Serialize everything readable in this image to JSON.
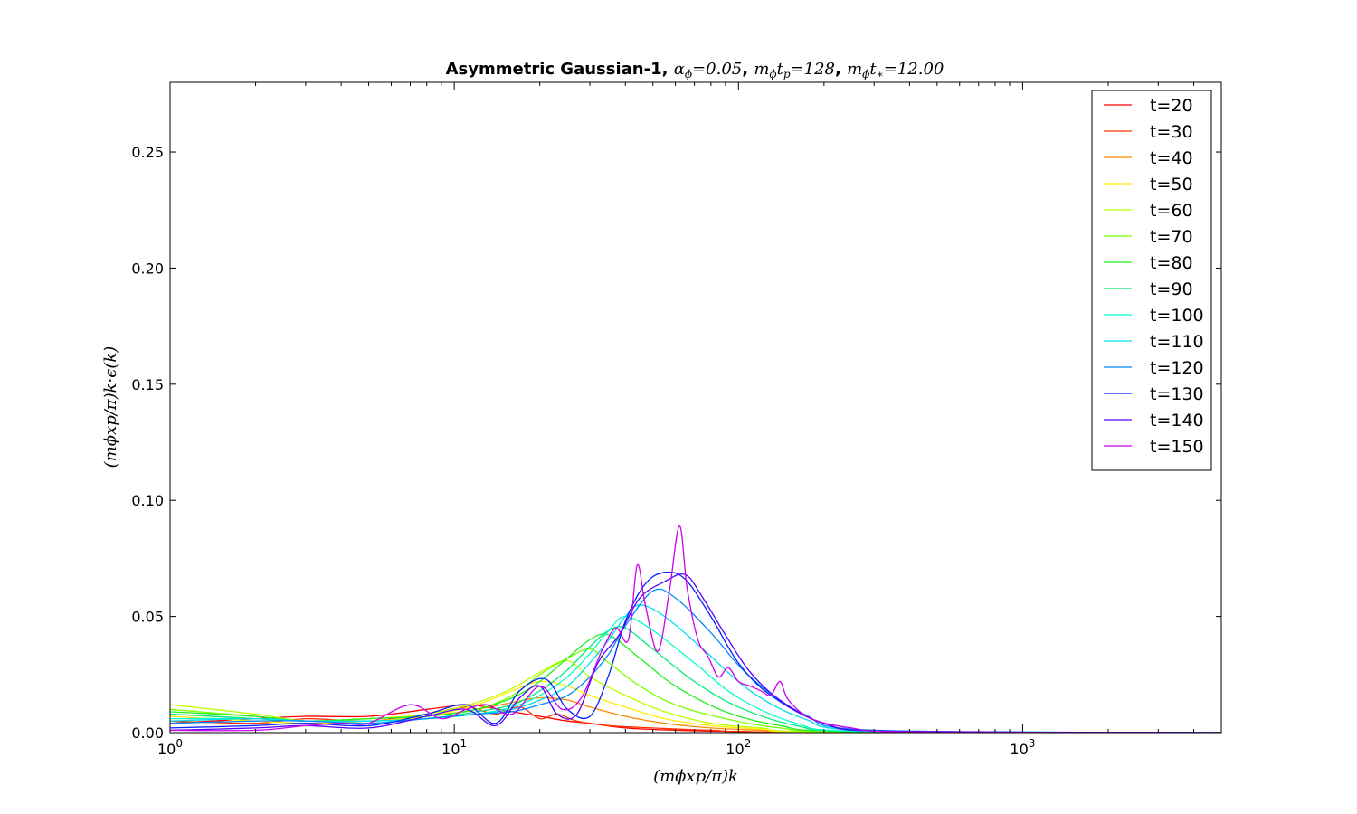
{
  "chart_data": {
    "type": "line",
    "title": {
      "prefix": "Asymmetric Gaussian-1, ",
      "alpha": "α",
      "alpha_sub": "ϕ",
      "alpha_val": "=0.05",
      "sep1": ", ",
      "m1": "m",
      "m1_sub": "ϕ",
      "tp": "t",
      "tp_sub": "p",
      "tp_val": "=128",
      "sep2": ", ",
      "m2": "m",
      "m2_sub": "ϕ",
      "ts": "t",
      "ts_sub": "∗",
      "ts_val": "=12.00"
    },
    "xlabel": "(mϕxp/π)k",
    "ylabel": "(mϕxp/π)k·ϵ(k)",
    "x_scale": "log",
    "xlim": [
      1,
      5000
    ],
    "ylim": [
      0,
      0.28
    ],
    "x_ticks": [
      {
        "value": 1,
        "base": "10",
        "exp": "0"
      },
      {
        "value": 10,
        "base": "10",
        "exp": "1"
      },
      {
        "value": 100,
        "base": "10",
        "exp": "2"
      },
      {
        "value": 1000,
        "base": "10",
        "exp": "3"
      }
    ],
    "y_ticks": [
      {
        "value": 0.0,
        "label": "0.00"
      },
      {
        "value": 0.05,
        "label": "0.05"
      },
      {
        "value": 0.1,
        "label": "0.10"
      },
      {
        "value": 0.15,
        "label": "0.15"
      },
      {
        "value": 0.2,
        "label": "0.20"
      },
      {
        "value": 0.25,
        "label": "0.25"
      }
    ],
    "grid": false,
    "legend": "top-right",
    "series": [
      {
        "name": "t=20",
        "color": "#ff0000",
        "x": [
          1,
          2,
          3,
          5,
          8,
          11,
          13,
          16,
          20,
          25,
          30,
          40,
          60,
          100,
          200,
          5000
        ],
        "y": [
          0.004,
          0.006,
          0.007,
          0.007,
          0.01,
          0.012,
          0.011,
          0.009,
          0.007,
          0.005,
          0.004,
          0.002,
          0.001,
          0.0005,
          0.0001,
          0
        ]
      },
      {
        "name": "t=30",
        "color": "#ff3300",
        "x": [
          1,
          2,
          3,
          5,
          8,
          11,
          14,
          17,
          20,
          23,
          27,
          35,
          50,
          80,
          150,
          5000
        ],
        "y": [
          0.005,
          0.004,
          0.006,
          0.005,
          0.008,
          0.011,
          0.008,
          0.011,
          0.006,
          0.008,
          0.005,
          0.003,
          0.002,
          0.001,
          0.0002,
          0
        ]
      },
      {
        "name": "t=40",
        "color": "#ff8800",
        "x": [
          1,
          2,
          3,
          5,
          8,
          12,
          16,
          20,
          25,
          30,
          40,
          55,
          80,
          120,
          200,
          5000
        ],
        "y": [
          0.008,
          0.006,
          0.005,
          0.006,
          0.007,
          0.01,
          0.013,
          0.015,
          0.014,
          0.011,
          0.007,
          0.004,
          0.002,
          0.001,
          0.0002,
          0
        ]
      },
      {
        "name": "t=50",
        "color": "#ffee00",
        "x": [
          1,
          2,
          3,
          5,
          8,
          12,
          16,
          20,
          25,
          30,
          40,
          55,
          80,
          120,
          200,
          5000
        ],
        "y": [
          0.007,
          0.005,
          0.004,
          0.005,
          0.007,
          0.012,
          0.018,
          0.022,
          0.02,
          0.016,
          0.011,
          0.006,
          0.003,
          0.0015,
          0.0003,
          0
        ]
      },
      {
        "name": "t=60",
        "color": "#bbff00",
        "x": [
          1,
          2,
          3,
          5,
          8,
          12,
          16,
          20,
          25,
          30,
          40,
          55,
          80,
          120,
          200,
          5000
        ],
        "y": [
          0.012,
          0.008,
          0.005,
          0.006,
          0.008,
          0.013,
          0.019,
          0.026,
          0.031,
          0.024,
          0.016,
          0.009,
          0.004,
          0.002,
          0.0004,
          0
        ]
      },
      {
        "name": "t=70",
        "color": "#77ff00",
        "x": [
          1,
          2,
          3,
          5,
          8,
          12,
          16,
          20,
          25,
          30,
          35,
          45,
          60,
          90,
          140,
          250,
          5000
        ],
        "y": [
          0.01,
          0.007,
          0.005,
          0.006,
          0.007,
          0.01,
          0.016,
          0.025,
          0.032,
          0.036,
          0.03,
          0.02,
          0.012,
          0.006,
          0.002,
          0.0004,
          0
        ]
      },
      {
        "name": "t=80",
        "color": "#22ee22",
        "x": [
          1,
          2,
          3,
          5,
          8,
          12,
          16,
          20,
          25,
          30,
          35,
          45,
          60,
          90,
          140,
          250,
          5000
        ],
        "y": [
          0.009,
          0.007,
          0.005,
          0.006,
          0.007,
          0.01,
          0.015,
          0.022,
          0.032,
          0.04,
          0.042,
          0.032,
          0.02,
          0.009,
          0.003,
          0.0005,
          0
        ]
      },
      {
        "name": "t=90",
        "color": "#00ee77",
        "x": [
          1,
          2,
          3,
          5,
          8,
          12,
          16,
          20,
          25,
          30,
          35,
          40,
          50,
          70,
          100,
          160,
          280,
          5000
        ],
        "y": [
          0.008,
          0.006,
          0.005,
          0.005,
          0.006,
          0.009,
          0.012,
          0.018,
          0.027,
          0.037,
          0.044,
          0.045,
          0.036,
          0.022,
          0.011,
          0.003,
          0.0005,
          0
        ]
      },
      {
        "name": "t=100",
        "color": "#00ffcc",
        "x": [
          1,
          2,
          3,
          5,
          8,
          12,
          16,
          20,
          25,
          30,
          35,
          40,
          50,
          70,
          100,
          160,
          280,
          5000
        ],
        "y": [
          0.006,
          0.006,
          0.005,
          0.005,
          0.006,
          0.008,
          0.011,
          0.016,
          0.024,
          0.034,
          0.044,
          0.05,
          0.044,
          0.03,
          0.015,
          0.004,
          0.0006,
          0
        ]
      },
      {
        "name": "t=110",
        "color": "#00ddee",
        "x": [
          1,
          2,
          3,
          5,
          8,
          12,
          16,
          20,
          25,
          30,
          35,
          40,
          45,
          55,
          75,
          110,
          170,
          300,
          5000
        ],
        "y": [
          0.005,
          0.006,
          0.005,
          0.005,
          0.006,
          0.008,
          0.01,
          0.014,
          0.02,
          0.03,
          0.04,
          0.05,
          0.055,
          0.05,
          0.036,
          0.018,
          0.006,
          0.0008,
          0
        ]
      },
      {
        "name": "t=120",
        "color": "#0088ff",
        "x": [
          1,
          2,
          3,
          5,
          8,
          12,
          16,
          20,
          25,
          30,
          35,
          40,
          50,
          60,
          80,
          110,
          170,
          300,
          5000
        ],
        "y": [
          0.004,
          0.005,
          0.005,
          0.004,
          0.006,
          0.008,
          0.009,
          0.012,
          0.016,
          0.024,
          0.034,
          0.046,
          0.061,
          0.058,
          0.043,
          0.024,
          0.008,
          0.001,
          0
        ]
      },
      {
        "name": "t=130",
        "color": "#0022ff",
        "x": [
          1,
          2,
          3,
          5,
          8,
          11,
          14,
          17,
          21,
          25,
          30,
          35,
          40,
          47,
          55,
          65,
          80,
          100,
          130,
          200,
          350,
          5000
        ],
        "y": [
          0.002,
          0.003,
          0.004,
          0.003,
          0.008,
          0.012,
          0.004,
          0.018,
          0.023,
          0.01,
          0.007,
          0.025,
          0.048,
          0.064,
          0.069,
          0.066,
          0.05,
          0.03,
          0.016,
          0.004,
          0.0005,
          0
        ]
      },
      {
        "name": "t=140",
        "color": "#5500ff",
        "x": [
          1,
          2,
          3,
          5,
          8,
          11,
          14,
          17,
          20,
          23,
          27,
          32,
          38,
          45,
          55,
          65,
          75,
          90,
          110,
          140,
          200,
          350,
          5000
        ],
        "y": [
          0.001,
          0.002,
          0.003,
          0.002,
          0.007,
          0.01,
          0.003,
          0.015,
          0.02,
          0.008,
          0.008,
          0.03,
          0.042,
          0.058,
          0.065,
          0.068,
          0.058,
          0.042,
          0.026,
          0.014,
          0.004,
          0.0005,
          0
        ]
      },
      {
        "name": "t=150",
        "color": "#cc00ee",
        "x": [
          1,
          2,
          3,
          4,
          5,
          7,
          9,
          11,
          13,
          16,
          20,
          24,
          28,
          33,
          37,
          41,
          44,
          47,
          52,
          57,
          62,
          66,
          72,
          78,
          85,
          92,
          100,
          110,
          120,
          130,
          140,
          150,
          180,
          250,
          400,
          5000
        ],
        "y": [
          0.001,
          0.001,
          0.003,
          0.004,
          0.004,
          0.012,
          0.006,
          0.01,
          0.012,
          0.008,
          0.02,
          0.01,
          0.015,
          0.035,
          0.045,
          0.04,
          0.072,
          0.055,
          0.035,
          0.06,
          0.089,
          0.062,
          0.04,
          0.033,
          0.024,
          0.028,
          0.022,
          0.02,
          0.018,
          0.016,
          0.022,
          0.014,
          0.006,
          0.002,
          0.0003,
          0
        ]
      }
    ]
  }
}
